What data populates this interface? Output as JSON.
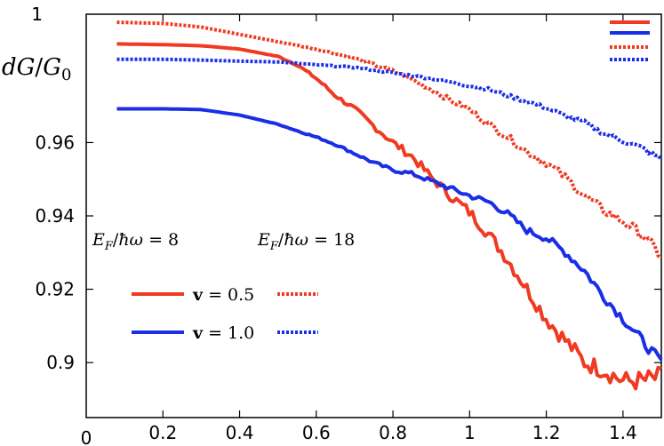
{
  "chart_data": {
    "type": "line",
    "ylabel": "dG/G0",
    "xlim": [
      0,
      1.5
    ],
    "ylim": [
      0.885,
      0.995
    ],
    "x_ticks": [
      "0.2",
      "0.4",
      "0.6",
      "0.8",
      "1",
      "1.2",
      "1.4"
    ],
    "x_tick_values": [
      0.2,
      0.4,
      0.6,
      0.8,
      1.0,
      1.2,
      1.4
    ],
    "x_origin_label": "0",
    "y_ticks": [
      "0.9",
      "0.92",
      "0.94",
      "0.96"
    ],
    "y_tick_values": [
      0.9,
      0.92,
      0.94,
      0.96
    ],
    "y_top_label": "1",
    "y_top_value": 0.995,
    "legend": {
      "col1_header": "E_F/ħω = 8",
      "col2_header": "E_F/ħω = 18",
      "row1_label": "v = 0.5",
      "row2_label": "v = 1.0"
    },
    "grid": false,
    "series": [
      {
        "color": "#f03a22",
        "dashed": false,
        "jitter": 0.003,
        "points": [
          [
            0.08,
            0.9869
          ],
          [
            0.2,
            0.9867
          ],
          [
            0.3,
            0.9864
          ],
          [
            0.4,
            0.9855
          ],
          [
            0.5,
            0.9835
          ],
          [
            0.55,
            0.9812
          ],
          [
            0.6,
            0.9775
          ],
          [
            0.65,
            0.9728
          ],
          [
            0.7,
            0.9692
          ],
          [
            0.75,
            0.9645
          ],
          [
            0.8,
            0.96
          ],
          [
            0.85,
            0.9562
          ],
          [
            0.9,
            0.9505
          ],
          [
            0.95,
            0.9455
          ],
          [
            1.0,
            0.941
          ],
          [
            1.05,
            0.935
          ],
          [
            1.1,
            0.928
          ],
          [
            1.15,
            0.92
          ],
          [
            1.2,
            0.912
          ],
          [
            1.25,
            0.906
          ],
          [
            1.3,
            0.9
          ],
          [
            1.35,
            0.898
          ],
          [
            1.4,
            0.895
          ],
          [
            1.45,
            0.895
          ],
          [
            1.5,
            0.896
          ]
        ]
      },
      {
        "color": "#1a2ee6",
        "dashed": false,
        "jitter": 0.0015,
        "points": [
          [
            0.08,
            0.9692
          ],
          [
            0.2,
            0.9692
          ],
          [
            0.3,
            0.969
          ],
          [
            0.4,
            0.9675
          ],
          [
            0.5,
            0.965
          ],
          [
            0.55,
            0.9632
          ],
          [
            0.6,
            0.9615
          ],
          [
            0.65,
            0.9595
          ],
          [
            0.7,
            0.957
          ],
          [
            0.75,
            0.9545
          ],
          [
            0.8,
            0.9525
          ],
          [
            0.85,
            0.9515
          ],
          [
            0.9,
            0.9495
          ],
          [
            0.95,
            0.9475
          ],
          [
            1.0,
            0.9455
          ],
          [
            1.05,
            0.9438
          ],
          [
            1.1,
            0.9405
          ],
          [
            1.15,
            0.936
          ],
          [
            1.2,
            0.934
          ],
          [
            1.25,
            0.93
          ],
          [
            1.3,
            0.925
          ],
          [
            1.35,
            0.918
          ],
          [
            1.4,
            0.912
          ],
          [
            1.45,
            0.906
          ],
          [
            1.5,
            0.9
          ]
        ]
      },
      {
        "color": "#f03a22",
        "dashed": true,
        "jitter": 0.0015,
        "points": [
          [
            0.08,
            0.9928
          ],
          [
            0.2,
            0.9925
          ],
          [
            0.3,
            0.9915
          ],
          [
            0.4,
            0.9895
          ],
          [
            0.5,
            0.9875
          ],
          [
            0.6,
            0.9855
          ],
          [
            0.7,
            0.983
          ],
          [
            0.8,
            0.9795
          ],
          [
            0.85,
            0.9772
          ],
          [
            0.9,
            0.9745
          ],
          [
            0.95,
            0.9715
          ],
          [
            1.0,
            0.969
          ],
          [
            1.05,
            0.965
          ],
          [
            1.1,
            0.9615
          ],
          [
            1.15,
            0.9575
          ],
          [
            1.2,
            0.9545
          ],
          [
            1.25,
            0.9505
          ],
          [
            1.3,
            0.9455
          ],
          [
            1.35,
            0.9415
          ],
          [
            1.4,
            0.9385
          ],
          [
            1.45,
            0.935
          ],
          [
            1.5,
            0.929
          ]
        ]
      },
      {
        "color": "#1a2ee6",
        "dashed": true,
        "jitter": 0.0008,
        "points": [
          [
            0.08,
            0.9827
          ],
          [
            0.2,
            0.9827
          ],
          [
            0.3,
            0.9825
          ],
          [
            0.4,
            0.9822
          ],
          [
            0.5,
            0.982
          ],
          [
            0.6,
            0.9812
          ],
          [
            0.7,
            0.9805
          ],
          [
            0.8,
            0.979
          ],
          [
            0.9,
            0.9775
          ],
          [
            1.0,
            0.9755
          ],
          [
            1.05,
            0.9745
          ],
          [
            1.1,
            0.9728
          ],
          [
            1.15,
            0.9712
          ],
          [
            1.2,
            0.9695
          ],
          [
            1.25,
            0.9672
          ],
          [
            1.3,
            0.9655
          ],
          [
            1.35,
            0.9625
          ],
          [
            1.4,
            0.9605
          ],
          [
            1.45,
            0.9585
          ],
          [
            1.5,
            0.9555
          ]
        ]
      }
    ]
  }
}
